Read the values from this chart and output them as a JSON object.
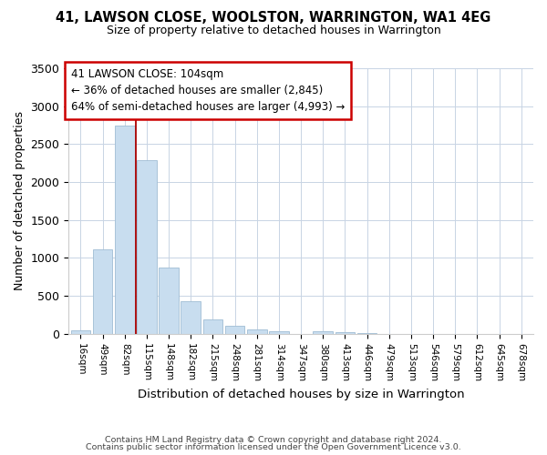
{
  "title1": "41, LAWSON CLOSE, WOOLSTON, WARRINGTON, WA1 4EG",
  "title2": "Size of property relative to detached houses in Warrington",
  "xlabel": "Distribution of detached houses by size in Warrington",
  "ylabel": "Number of detached properties",
  "categories": [
    "16sqm",
    "49sqm",
    "82sqm",
    "115sqm",
    "148sqm",
    "182sqm",
    "215sqm",
    "248sqm",
    "281sqm",
    "314sqm",
    "347sqm",
    "380sqm",
    "413sqm",
    "446sqm",
    "479sqm",
    "513sqm",
    "546sqm",
    "579sqm",
    "612sqm",
    "645sqm",
    "678sqm"
  ],
  "values": [
    40,
    1110,
    2740,
    2290,
    875,
    430,
    190,
    100,
    55,
    35,
    0,
    35,
    20,
    10,
    0,
    0,
    0,
    0,
    0,
    0,
    0
  ],
  "bar_color": "#c8ddef",
  "bar_edge_color": "#a0bdd4",
  "vline_color": "#aa0000",
  "annotation_title": "41 LAWSON CLOSE: 104sqm",
  "annotation_line1": "← 36% of detached houses are smaller (2,845)",
  "annotation_line2": "64% of semi-detached houses are larger (4,993) →",
  "annotation_box_color": "#ffffff",
  "annotation_box_edge": "#cc0000",
  "ylim": [
    0,
    3500
  ],
  "yticks": [
    0,
    500,
    1000,
    1500,
    2000,
    2500,
    3000,
    3500
  ],
  "footer1": "Contains HM Land Registry data © Crown copyright and database right 2024.",
  "footer2": "Contains public sector information licensed under the Open Government Licence v3.0.",
  "background_color": "#ffffff",
  "grid_color": "#c8d4e4"
}
